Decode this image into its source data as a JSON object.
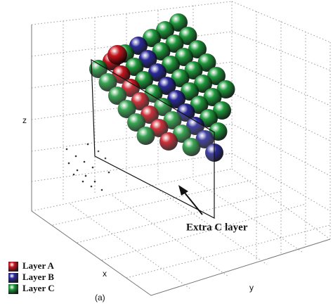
{
  "axes": {
    "x": "x",
    "y": "y",
    "z": "z"
  },
  "annotation": "Extra C layer",
  "legend": [
    {
      "label": "Layer A",
      "color": "#c8141e"
    },
    {
      "label": "Layer B",
      "color": "#2a2a9a"
    },
    {
      "label": "Layer C",
      "color": "#1e9a3c"
    }
  ],
  "caption": "(a)"
}
